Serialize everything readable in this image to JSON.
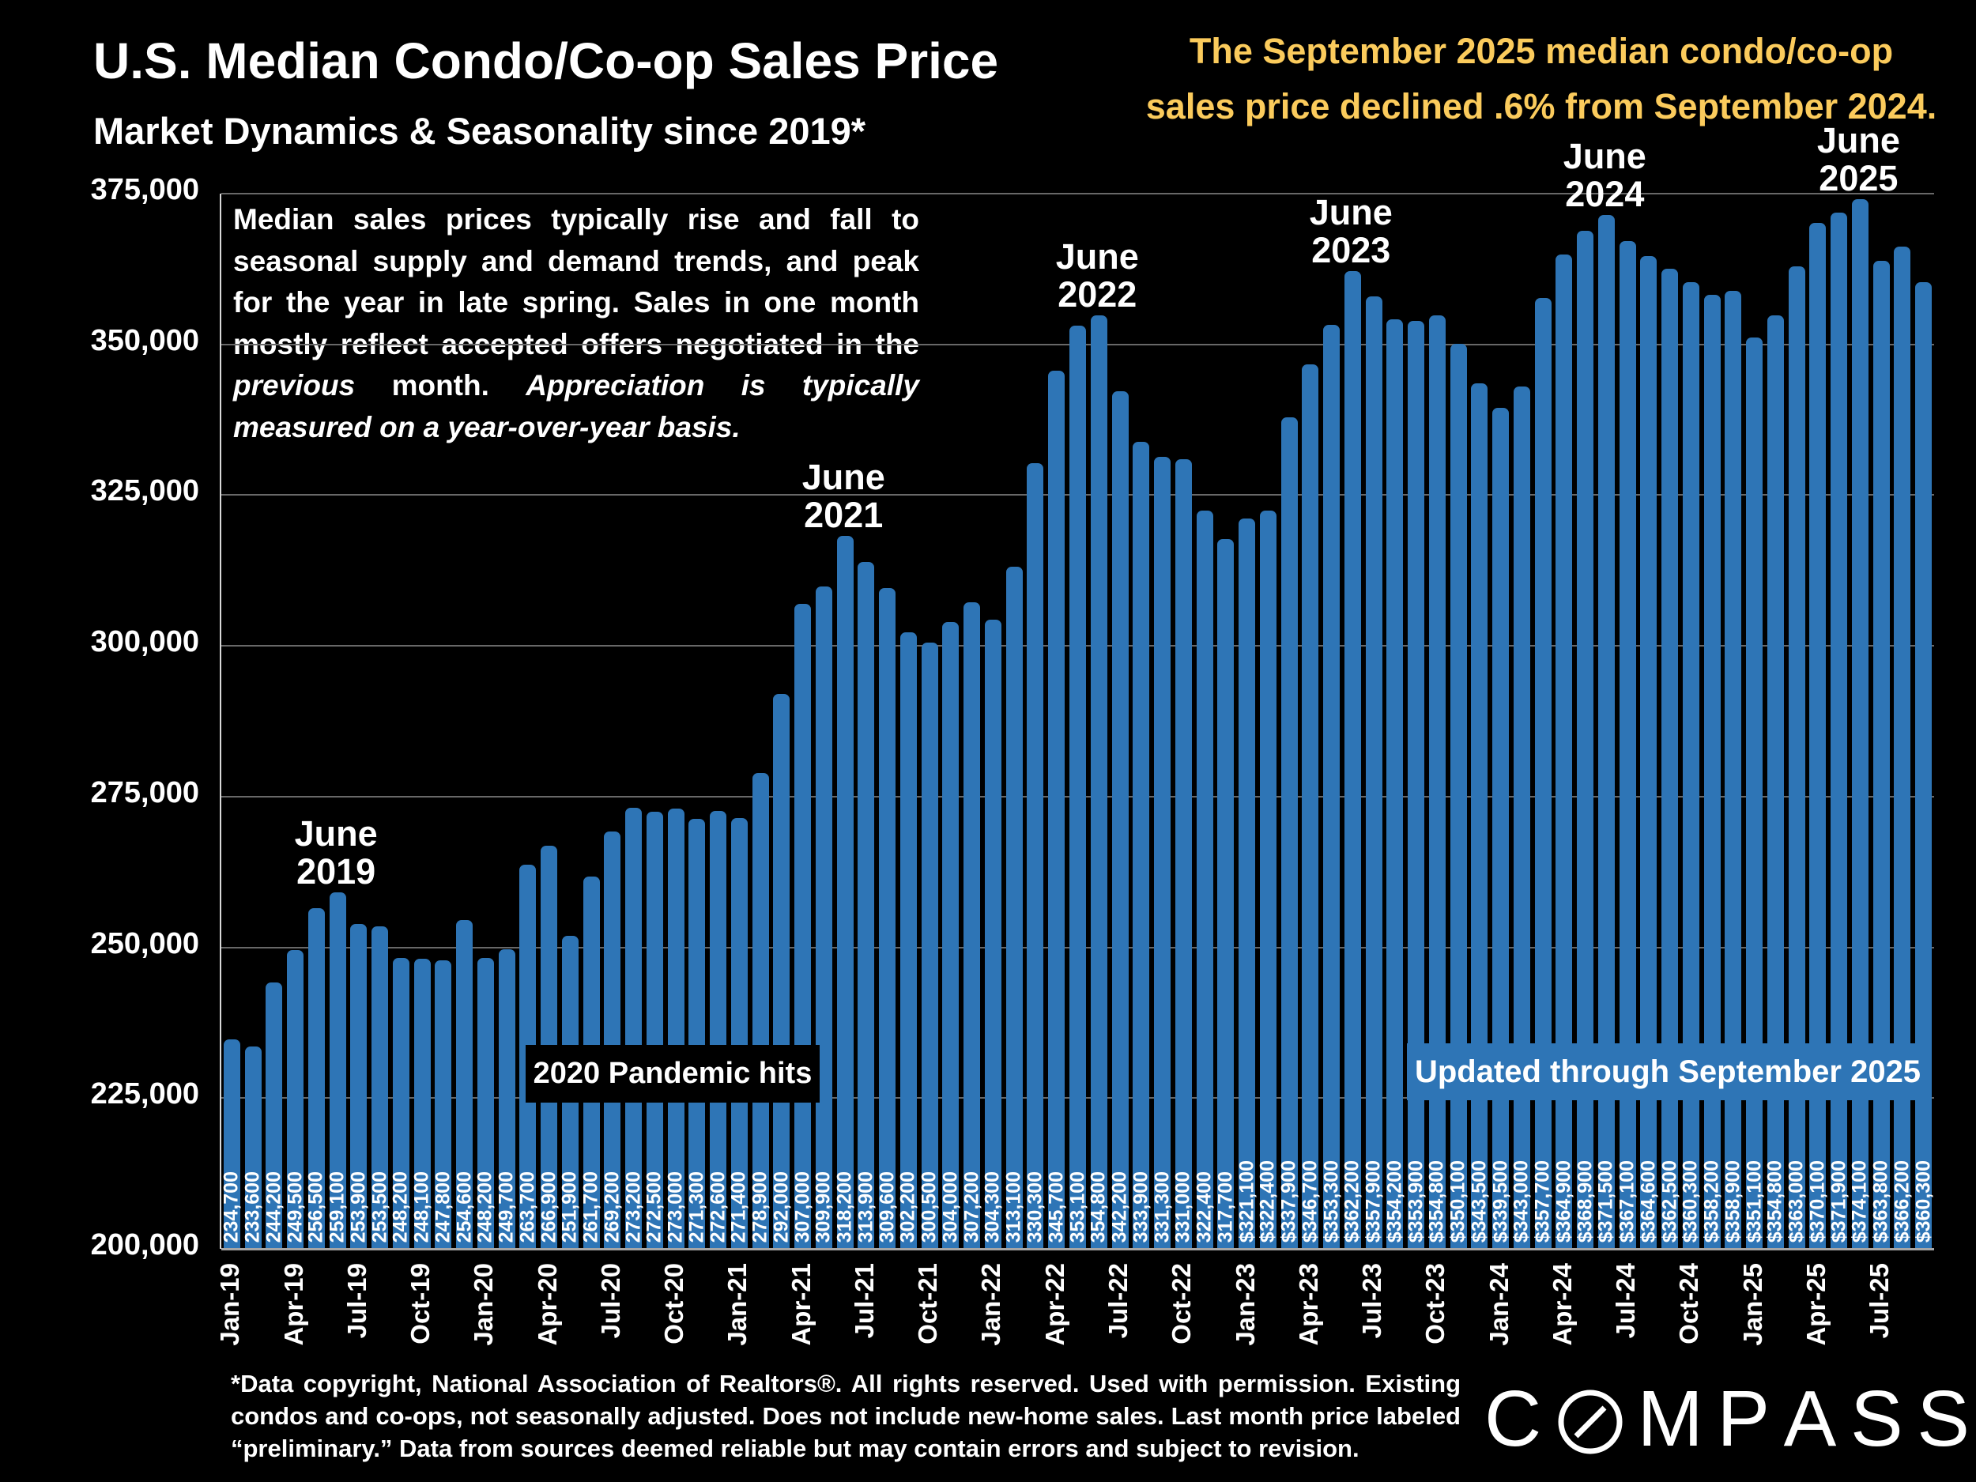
{
  "header": {
    "title": "U.S. Median Condo/Co-op Sales Price",
    "subtitle": "Market Dynamics & Seasonality since 2019*",
    "note": {
      "line1": "The September 2025 median condo/co-op",
      "line2": "sales price declined .6% from September 2024.",
      "color": "#FBCB5C"
    }
  },
  "commentary": {
    "segments": [
      {
        "text": "Median sales prices typically rise and fall to seasonal supply and demand trends, and peak for the year in late spring. Sales in one month mostly reflect accepted offers negotiated in the ",
        "italic": false
      },
      {
        "text": "previous",
        "italic": true
      },
      {
        "text": " month. ",
        "italic": false
      },
      {
        "text": "Appreciation is typically measured on a year-over-year basis.",
        "italic": true
      }
    ]
  },
  "chart_data": {
    "type": "bar",
    "bar_color": "#2E75B6",
    "ylim": [
      200000,
      375000
    ],
    "x_tick_step": 3,
    "grid": true,
    "x": [
      "Jan-19",
      "Feb-19",
      "Mar-19",
      "Apr-19",
      "May-19",
      "Jun-19",
      "Jul-19",
      "Aug-19",
      "Sep-19",
      "Oct-19",
      "Nov-19",
      "Dec-19",
      "Jan-20",
      "Feb-20",
      "Mar-20",
      "Apr-20",
      "May-20",
      "Jun-20",
      "Jul-20",
      "Aug-20",
      "Sep-20",
      "Oct-20",
      "Nov-20",
      "Dec-20",
      "Jan-21",
      "Feb-21",
      "Mar-21",
      "Apr-21",
      "May-21",
      "Jun-21",
      "Jul-21",
      "Aug-21",
      "Sep-21",
      "Oct-21",
      "Nov-21",
      "Dec-21",
      "Jan-22",
      "Feb-22",
      "Mar-22",
      "Apr-22",
      "May-22",
      "Jun-22",
      "Jul-22",
      "Aug-22",
      "Sep-22",
      "Oct-22",
      "Nov-22",
      "Dec-22",
      "Jan-23",
      "Feb-23",
      "Mar-23",
      "Apr-23",
      "May-23",
      "Jun-23",
      "Jul-23",
      "Aug-23",
      "Sep-23",
      "Oct-23",
      "Nov-23",
      "Dec-23",
      "Jan-24",
      "Feb-24",
      "Mar-24",
      "Apr-24",
      "May-24",
      "Jun-24",
      "Jul-24",
      "Aug-24",
      "Sep-24",
      "Oct-24",
      "Nov-24",
      "Dec-24",
      "Jan-25",
      "Feb-25",
      "Mar-25",
      "Apr-25",
      "May-25",
      "Jun-25",
      "Jul-25",
      "Aug-25",
      "Sep-25"
    ],
    "values": [
      234700,
      233600,
      244200,
      249500,
      256500,
      259100,
      253900,
      253500,
      248200,
      248100,
      247800,
      254600,
      248200,
      249700,
      263700,
      266900,
      251900,
      261700,
      269200,
      273200,
      272500,
      273000,
      271300,
      272600,
      271400,
      278900,
      292000,
      307000,
      309900,
      318200,
      313900,
      309600,
      302200,
      300500,
      304000,
      307200,
      304300,
      313100,
      330300,
      345700,
      353100,
      354800,
      342200,
      333900,
      331300,
      331000,
      322400,
      317700,
      321100,
      322400,
      337900,
      346700,
      353300,
      362200,
      357900,
      354200,
      353900,
      354800,
      350100,
      343500,
      339500,
      343000,
      357700,
      364900,
      368900,
      371500,
      367100,
      364600,
      362500,
      360300,
      358200,
      358900,
      351100,
      354800,
      363000,
      370100,
      371900,
      374100,
      363800,
      366200,
      360300
    ],
    "bar_labels": [
      "234,700",
      "233,600",
      "244,200",
      "249,500",
      "256,500",
      "259,100",
      "253,900",
      "253,500",
      "248,200",
      "248,100",
      "247,800",
      "254,600",
      "248,200",
      "249,700",
      "263,700",
      "266,900",
      "251,900",
      "261,700",
      "269,200",
      "273,200",
      "272,500",
      "273,000",
      "271,300",
      "272,600",
      "271,400",
      "278,900",
      "292,000",
      "307,000",
      "309,900",
      "318,200",
      "313,900",
      "309,600",
      "302,200",
      "300,500",
      "304,000",
      "307,200",
      "304,300",
      "313,100",
      "330,300",
      "345,700",
      "353,100",
      "354,800",
      "342,200",
      "333,900",
      "331,300",
      "331,000",
      "322,400",
      "317,700",
      "$321,100",
      "$322,400",
      "$337,900",
      "$346,700",
      "$353,300",
      "$362,200",
      "$357,900",
      "$354,200",
      "$353,900",
      "$354,800",
      "$350,100",
      "$343,500",
      "$339,500",
      "$343,000",
      "$357,700",
      "$364,900",
      "$368,900",
      "$371,500",
      "$367,100",
      "$364,600",
      "$362,500",
      "$360,300",
      "$358,200",
      "$358,900",
      "$351,100",
      "$354,800",
      "$363,000",
      "$370,100",
      "$371,900",
      "$374,100",
      "$363,800",
      "$366,200",
      "$360,300"
    ],
    "yticks": [
      {
        "label": "375,000",
        "value": 375000
      },
      {
        "label": "350,000",
        "value": 350000
      },
      {
        "label": "325,000",
        "value": 325000
      },
      {
        "label": "300,000",
        "value": 300000
      },
      {
        "label": "275,000",
        "value": 275000
      },
      {
        "label": "250,000",
        "value": 250000
      },
      {
        "label": "225,000",
        "value": 225000
      },
      {
        "label": "200,000",
        "value": 200000
      }
    ],
    "annotations": [
      {
        "lines": "June\n2019",
        "index": 5
      },
      {
        "lines": "June\n2021",
        "index": 29
      },
      {
        "lines": "June\n2022",
        "index": 41
      },
      {
        "lines": "June\n2023",
        "index": 53
      },
      {
        "lines": "June\n2024",
        "index": 65
      },
      {
        "lines": "June\n2025",
        "index": 77
      }
    ],
    "boxes": {
      "pandemic": "2020 Pandemic hits",
      "updated": "Updated through September 2025"
    }
  },
  "footer": {
    "text": "*Data copyright, National Association of Realtors®. All rights reserved. Used with permission. Existing condos and co-ops, not seasonally adjusted. Does not include new-home sales. Last month price labeled “preliminary.” Data from sources deemed reliable but may contain errors and subject to revision.",
    "brand": "COMPASS"
  }
}
